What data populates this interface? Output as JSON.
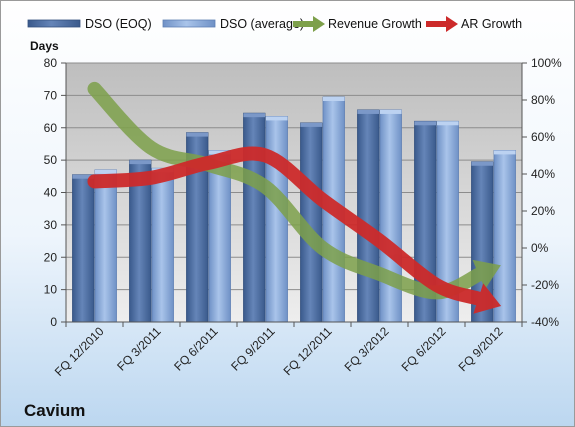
{
  "chart_data": {
    "type": "bar",
    "company": "Cavium",
    "left_axis_title": "Days",
    "categories": [
      "FQ 12/2010",
      "FQ 3/2011",
      "FQ 6/2011",
      "FQ 9/2011",
      "FQ 12/2011",
      "FQ 3/2012",
      "FQ 6/2012",
      "FQ 9/2012"
    ],
    "ylim": [
      0,
      80
    ],
    "yticks": [
      0,
      10,
      20,
      30,
      40,
      50,
      60,
      70,
      80
    ],
    "y2lim": [
      -40,
      100
    ],
    "y2ticks": [
      "-40%",
      "-20%",
      "0%",
      "20%",
      "40%",
      "60%",
      "80%",
      "100%"
    ],
    "y2tick_values": [
      -40,
      -20,
      0,
      20,
      40,
      60,
      80,
      100
    ],
    "grid": true,
    "legend_position": "top",
    "series": [
      {
        "name": "DSO (EOQ)",
        "kind": "bar",
        "axis": "left",
        "color": "#4f6fa0",
        "values": [
          45.5,
          50,
          58.5,
          64.5,
          61.5,
          65.5,
          62,
          49.5
        ]
      },
      {
        "name": "DSO (average)",
        "kind": "bar",
        "axis": "left",
        "color": "#8eaede",
        "values": [
          47,
          47.5,
          53,
          63.5,
          69.5,
          65.5,
          62,
          53
        ]
      },
      {
        "name": "Revenue Growth",
        "kind": "arrow-line",
        "axis": "right",
        "color": "#7da04a",
        "values": [
          86,
          54,
          45,
          33,
          0,
          -14,
          -24,
          -11
        ]
      },
      {
        "name": "AR Growth",
        "kind": "arrow-line",
        "axis": "right",
        "color": "#cc2a2a",
        "values": [
          36,
          38,
          46,
          50,
          26,
          4,
          -20,
          -30
        ]
      }
    ]
  }
}
